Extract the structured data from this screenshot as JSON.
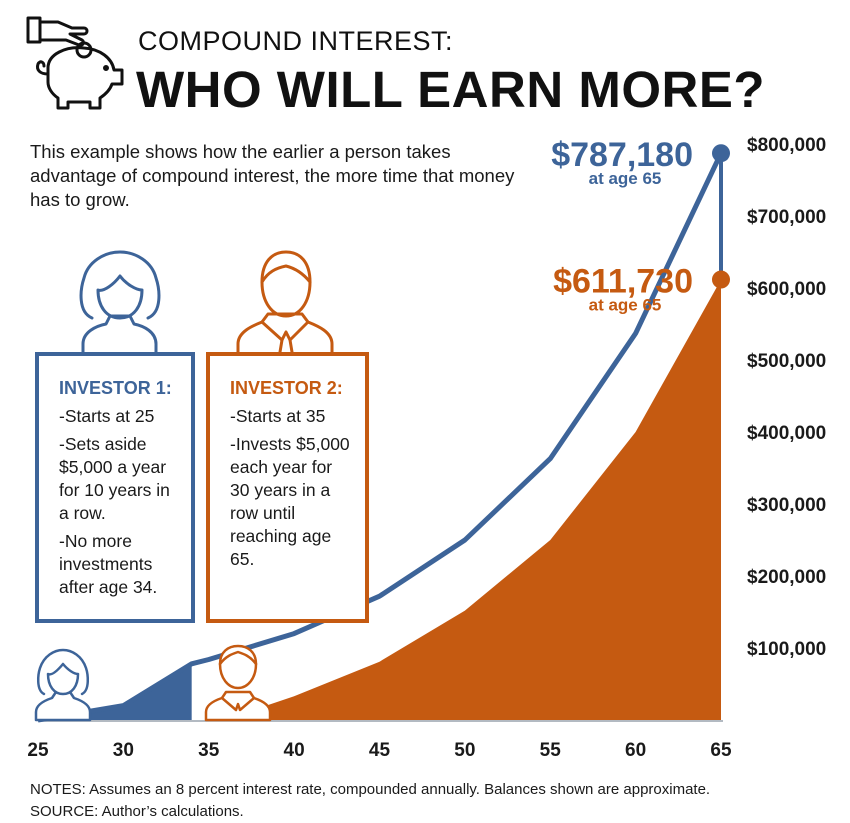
{
  "header": {
    "subtitle": "COMPOUND INTEREST:",
    "title": "WHO WILL EARN MORE?"
  },
  "intro": "This example shows how the earlier a person takes advantage of compound interest, the more time that money has to grow.",
  "investor1": {
    "title": "INVESTOR 1:",
    "lines": [
      "-Starts at 25",
      "-Sets aside $5,000 a year for 10 years in a row.",
      "-No more investments after age 34."
    ]
  },
  "investor2": {
    "title": "INVESTOR 2:",
    "lines": [
      "-Starts at 35",
      "-Invests $5,000 each year for 30 years in a row until reaching age 65."
    ]
  },
  "notes": {
    "line1": "NOTES: Assumes an 8 percent interest rate, compounded annually. Balances shown are approximate.",
    "line2": "SOURCE: Author’s calculations."
  },
  "colors": {
    "investor1": "#3d6499",
    "investor2": "#c55a11",
    "text": "#1a1a1a"
  },
  "icons": [
    "hand-coin-piggy-bank-icon",
    "woman-icon",
    "man-icon"
  ],
  "chart_data": {
    "type": "area",
    "x_ticks": [
      25,
      30,
      35,
      40,
      45,
      50,
      55,
      60,
      65
    ],
    "y_ticks": [
      100000,
      200000,
      300000,
      400000,
      500000,
      600000,
      700000,
      800000
    ],
    "y_tick_labels": [
      "$100,000",
      "$200,000",
      "$300,000",
      "$400,000",
      "$500,000",
      "$600,000",
      "$700,000",
      "$800,000"
    ],
    "xlim": [
      25,
      65
    ],
    "ylim": [
      0,
      800000
    ],
    "series": [
      {
        "x": [
          25,
          30,
          34,
          35,
          40,
          45,
          50,
          55,
          60,
          65
        ],
        "y": [
          0,
          20000,
          78000,
          84000,
          120000,
          172000,
          250000,
          363000,
          537000,
          787180
        ],
        "filled_until": 34,
        "color": "#3d6499"
      },
      {
        "x": [
          35,
          38,
          40,
          45,
          50,
          55,
          60,
          65
        ],
        "y": [
          0,
          17000,
          33000,
          81000,
          152000,
          250000,
          400000,
          611730
        ],
        "filled": true,
        "color": "#c55a11"
      }
    ],
    "annotations": [
      {
        "value_label": "$787,180",
        "sub_label": "at age 65",
        "x": 65,
        "y": 787180,
        "color": "#3d6499"
      },
      {
        "value_label": "$611,730",
        "sub_label": "at age 65",
        "x": 65,
        "y": 611730,
        "color": "#c55a11"
      }
    ],
    "grid": false
  }
}
